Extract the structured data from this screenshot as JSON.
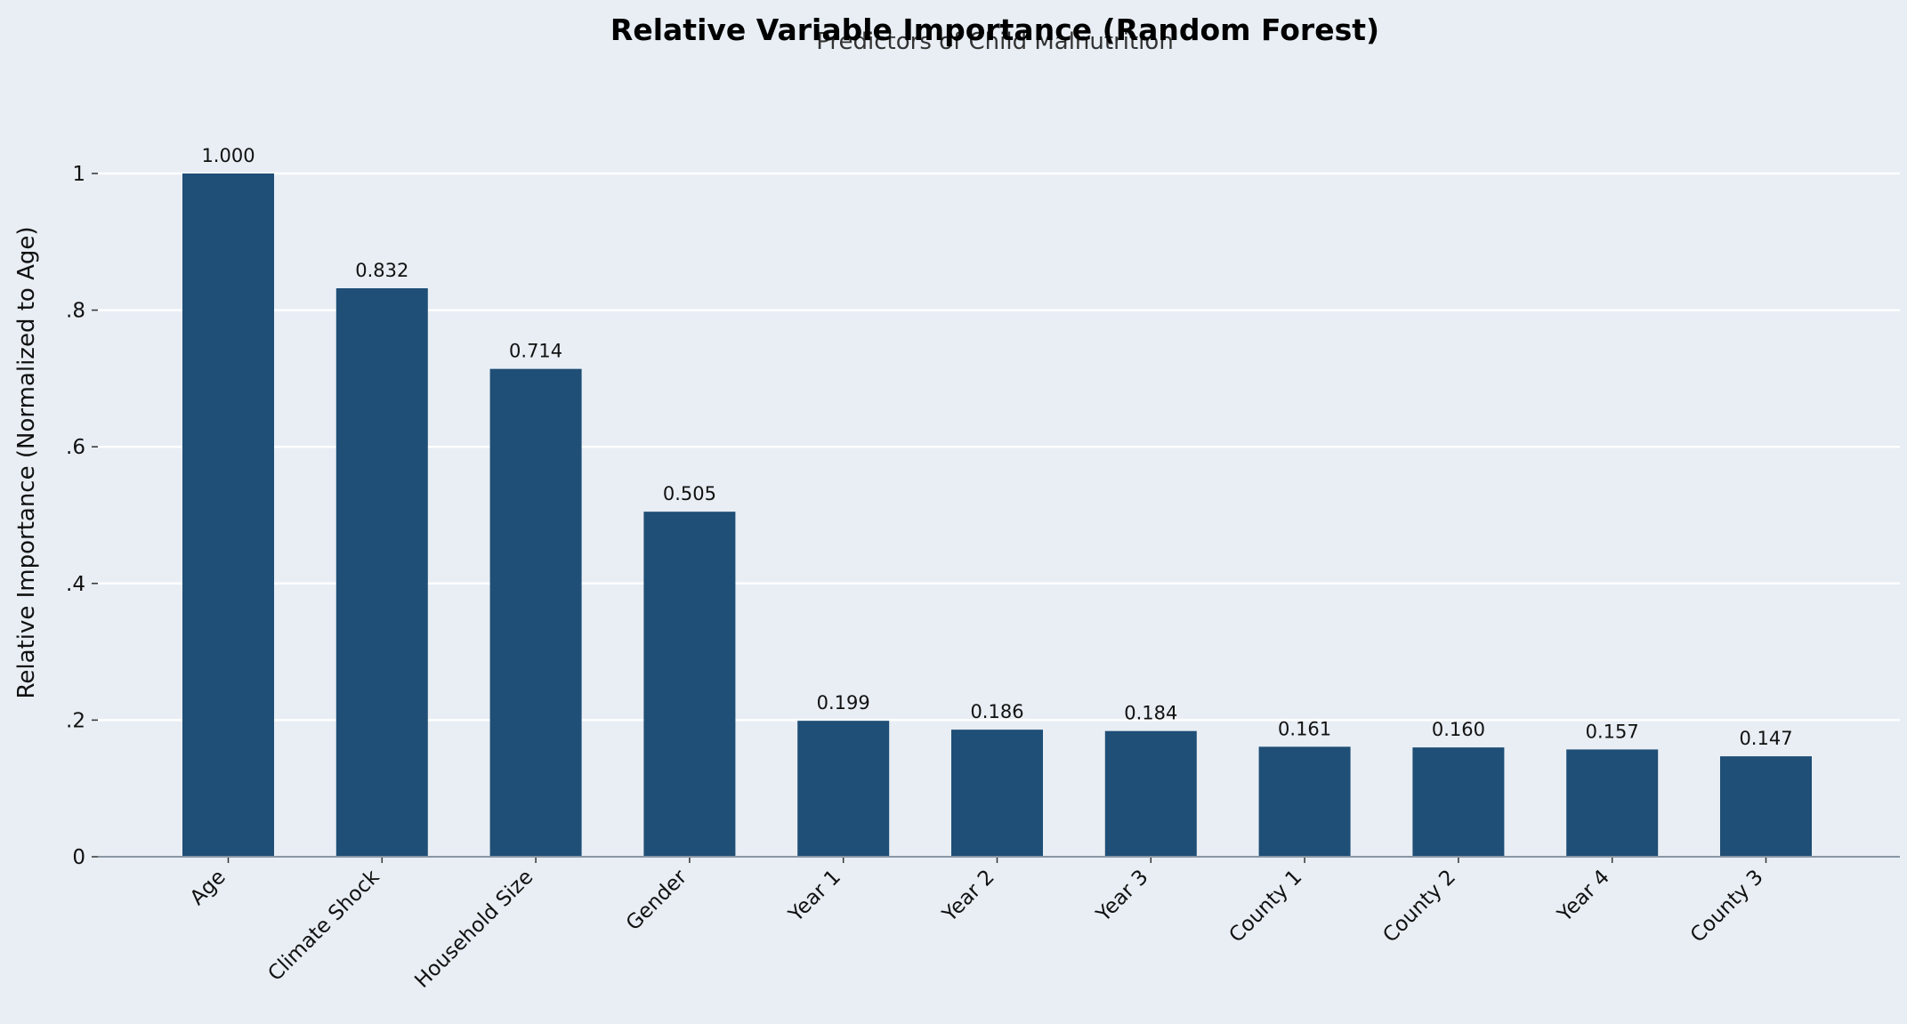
{
  "colors": {
    "background": "#e8eef4",
    "bar": "#1f4e76",
    "grid": "#ffffff",
    "axis": "#8a96a3"
  },
  "chart_data": {
    "type": "bar",
    "title": "Relative Variable Importance (Random Forest)",
    "subtitle": "Predictors of Child Malnutrition",
    "xlabel": "",
    "ylabel": "Relative Importance (Normalized to Age)",
    "categories": [
      "Age",
      "Climate Shock",
      "Household Size",
      "Gender",
      "Year 1",
      "Year 2",
      "Year 3",
      "County 1",
      "County 2",
      "Year 4",
      "County 3"
    ],
    "values": [
      1.0,
      0.832,
      0.714,
      0.505,
      0.199,
      0.186,
      0.184,
      0.161,
      0.16,
      0.157,
      0.147
    ],
    "data_labels": [
      "1.000",
      "0.832",
      "0.714",
      "0.505",
      "0.199",
      "0.186",
      "0.184",
      "0.161",
      "0.160",
      "0.157",
      "0.147"
    ],
    "yticks": [
      0,
      0.2,
      0.4,
      0.6,
      0.8,
      1.0
    ],
    "ytick_labels": [
      "0",
      ".2",
      ".4",
      ".6",
      ".8",
      "1"
    ],
    "ylim": [
      0,
      1.12
    ],
    "grid": "horizontal",
    "legend": "none"
  }
}
